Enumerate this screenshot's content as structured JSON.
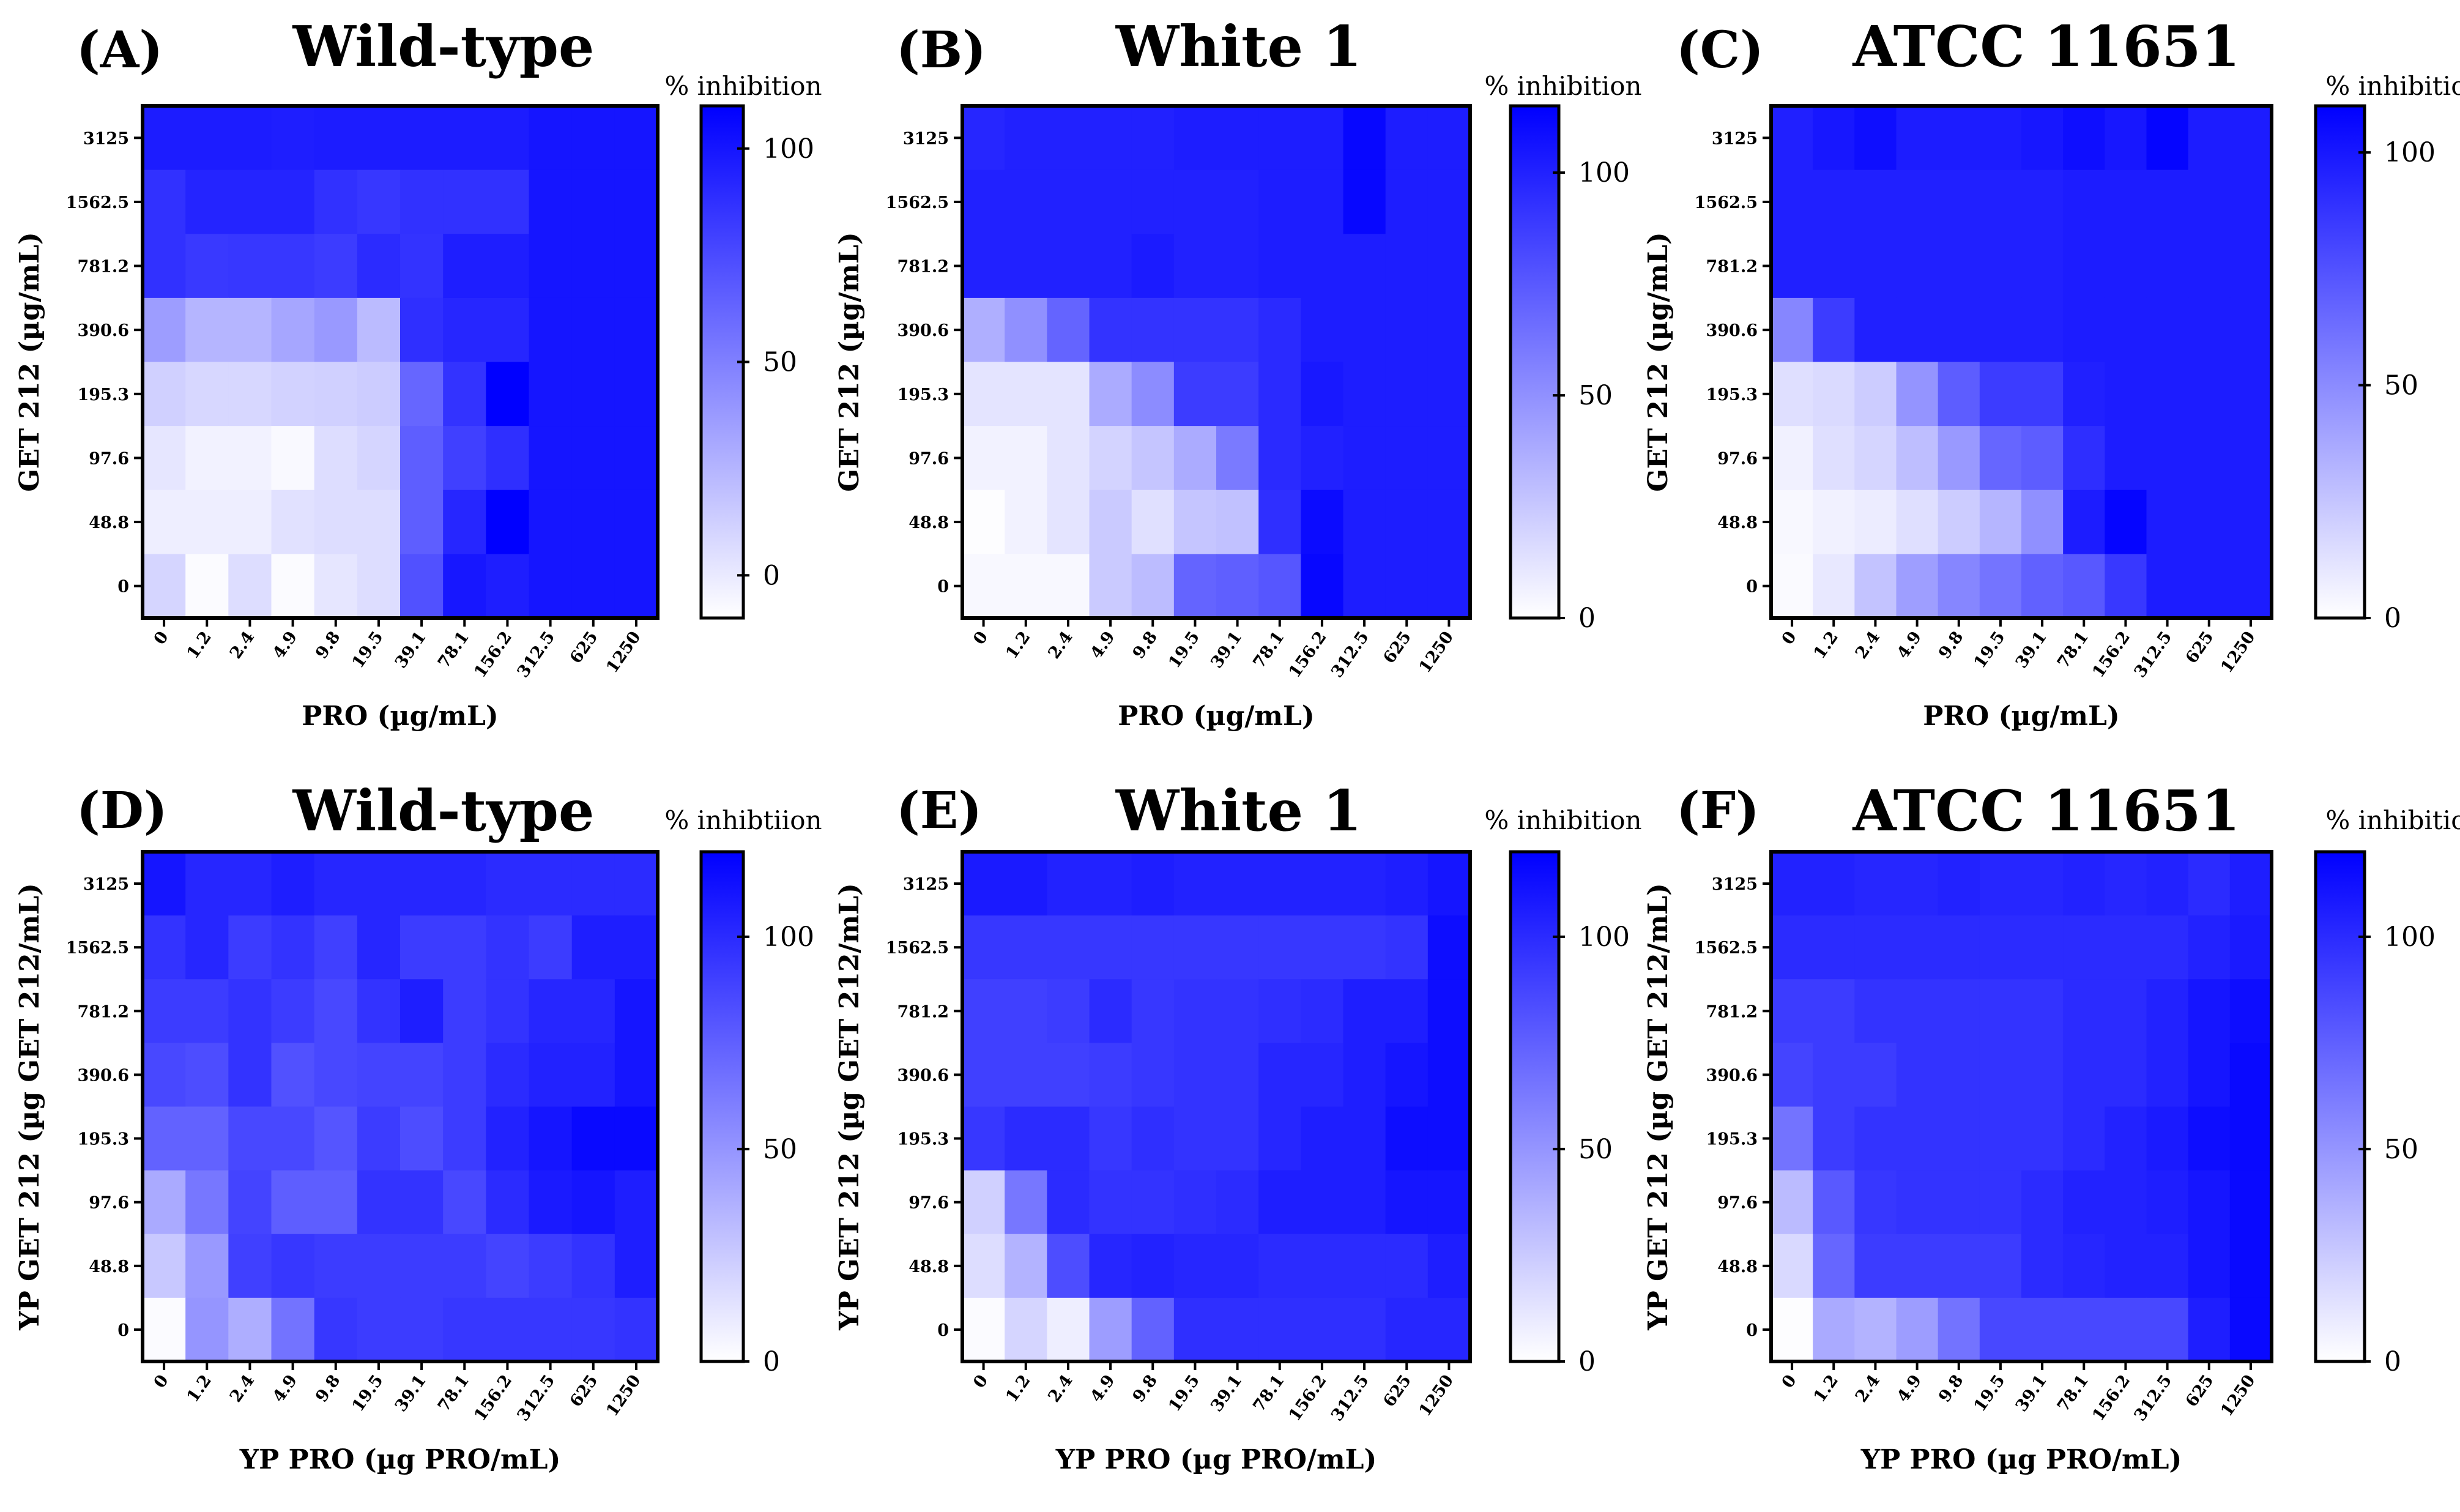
{
  "colors": {
    "low": "#ffffff",
    "high": "#0000ff",
    "frame": "#000000"
  },
  "chart_data": [
    {
      "type": "heatmap",
      "panel": "(A)",
      "title": "Wild-type",
      "xlabel": "PRO (µg/mL)",
      "ylabel": "GET 212 (µg/mL)",
      "colorbar_label": "% inhibition",
      "colorbar_ticks": [
        "0",
        "50",
        "100"
      ],
      "clim": [
        -10,
        110
      ],
      "x": [
        "0",
        "1.2",
        "2.4",
        "4.9",
        "9.8",
        "19.5",
        "39.1",
        "78.1",
        "156.2",
        "312.5",
        "625",
        "1250"
      ],
      "y": [
        "3125",
        "1562.5",
        "781.2",
        "390.6",
        "195.3",
        "97.6",
        "48.8",
        "0"
      ],
      "values": [
        [
          97,
          97,
          97,
          96,
          97,
          97,
          97,
          97,
          97,
          100,
          100,
          100
        ],
        [
          87,
          93,
          93,
          93,
          87,
          84,
          87,
          87,
          87,
          100,
          100,
          100
        ],
        [
          87,
          83,
          84,
          84,
          82,
          90,
          86,
          96,
          96,
          100,
          100,
          100
        ],
        [
          36,
          25,
          25,
          32,
          38,
          22,
          88,
          92,
          92,
          100,
          100,
          100
        ],
        [
          12,
          9,
          9,
          11,
          12,
          14,
          62,
          86,
          110,
          100,
          100,
          100
        ],
        [
          2,
          -4,
          -4,
          -7,
          6,
          10,
          66,
          80,
          88,
          100,
          100,
          100
        ],
        [
          -2,
          -2,
          -2,
          4,
          6,
          6,
          66,
          92,
          112,
          100,
          100,
          100
        ],
        [
          10,
          -8,
          6,
          -8,
          2,
          6,
          72,
          99,
          96,
          100,
          100,
          100
        ]
      ]
    },
    {
      "type": "heatmap",
      "panel": "(B)",
      "title": "White 1",
      "xlabel": "PRO (µg/mL)",
      "ylabel": "GET 212 (µg/mL)",
      "colorbar_label": "% inhibition",
      "colorbar_ticks": [
        "0",
        "50",
        "100"
      ],
      "clim": [
        0,
        115
      ],
      "x": [
        "0",
        "1.2",
        "2.4",
        "4.9",
        "9.8",
        "19.5",
        "39.1",
        "78.1",
        "156.2",
        "312.5",
        "625",
        "1250"
      ],
      "y": [
        "3125",
        "1562.5",
        "781.2",
        "390.6",
        "195.3",
        "97.6",
        "48.8",
        "0"
      ],
      "values": [
        [
          98,
          100,
          100,
          100,
          100,
          102,
          102,
          102,
          102,
          112,
          102,
          102
        ],
        [
          100,
          100,
          100,
          100,
          100,
          100,
          100,
          102,
          102,
          112,
          102,
          102
        ],
        [
          100,
          100,
          100,
          100,
          103,
          100,
          100,
          102,
          102,
          102,
          102,
          102
        ],
        [
          36,
          50,
          70,
          92,
          92,
          92,
          92,
          96,
          102,
          102,
          102,
          102
        ],
        [
          12,
          12,
          12,
          38,
          52,
          88,
          88,
          96,
          104,
          102,
          102,
          102
        ],
        [
          6,
          6,
          12,
          20,
          26,
          38,
          60,
          96,
          100,
          102,
          102,
          102
        ],
        [
          1,
          6,
          12,
          24,
          14,
          26,
          28,
          94,
          110,
          102,
          102,
          102
        ],
        [
          3,
          3,
          3,
          24,
          30,
          70,
          72,
          76,
          112,
          102,
          102,
          102
        ]
      ]
    },
    {
      "type": "heatmap",
      "panel": "(C)",
      "title": "ATCC 11651",
      "xlabel": "PRO (µg/mL)",
      "ylabel": "GET 212 (µg/mL)",
      "colorbar_label": "% inhibition",
      "colorbar_ticks": [
        "0",
        "50",
        "100"
      ],
      "clim": [
        0,
        110
      ],
      "x": [
        "0",
        "1.2",
        "2.4",
        "4.9",
        "9.8",
        "19.5",
        "39.1",
        "78.1",
        "156.2",
        "312.5",
        "625",
        "1250"
      ],
      "y": [
        "3125",
        "1562.5",
        "781.2",
        "390.6",
        "195.3",
        "97.6",
        "48.8",
        "0"
      ],
      "values": [
        [
          96,
          100,
          104,
          98,
          98,
          98,
          100,
          104,
          100,
          108,
          98,
          98
        ],
        [
          96,
          96,
          96,
          96,
          96,
          96,
          96,
          98,
          98,
          98,
          98,
          98
        ],
        [
          96,
          96,
          96,
          96,
          96,
          96,
          96,
          98,
          98,
          98,
          98,
          98
        ],
        [
          52,
          84,
          96,
          96,
          96,
          96,
          96,
          98,
          98,
          98,
          98,
          98
        ],
        [
          14,
          16,
          22,
          46,
          70,
          84,
          84,
          96,
          98,
          98,
          98,
          98
        ],
        [
          6,
          14,
          18,
          28,
          44,
          66,
          70,
          90,
          98,
          98,
          98,
          98
        ],
        [
          3,
          6,
          8,
          14,
          22,
          32,
          48,
          98,
          108,
          98,
          98,
          98
        ],
        [
          2,
          10,
          26,
          42,
          52,
          60,
          68,
          72,
          86,
          98,
          98,
          98
        ]
      ]
    },
    {
      "type": "heatmap",
      "panel": "(D)",
      "title": "Wild-type",
      "xlabel": "YP PRO (µg PRO/mL)",
      "ylabel": "YP GET 212 (µg GET 212/mL)",
      "colorbar_label": "% inhibtiion",
      "colorbar_ticks": [
        "0",
        "50",
        "100"
      ],
      "clim": [
        0,
        120
      ],
      "x": [
        "0",
        "1.2",
        "2.4",
        "4.9",
        "9.8",
        "19.5",
        "39.1",
        "78.1",
        "156.2",
        "312.5",
        "625",
        "1250"
      ],
      "y": [
        "3125",
        "1562.5",
        "781.2",
        "390.6",
        "195.3",
        "97.6",
        "48.8",
        "0"
      ],
      "values": [
        [
          110,
          102,
          102,
          106,
          102,
          102,
          102,
          102,
          100,
          100,
          100,
          100
        ],
        [
          96,
          102,
          92,
          96,
          90,
          102,
          92,
          92,
          96,
          92,
          106,
          106
        ],
        [
          92,
          92,
          96,
          92,
          86,
          96,
          106,
          92,
          96,
          102,
          102,
          110
        ],
        [
          86,
          84,
          96,
          82,
          86,
          88,
          88,
          92,
          100,
          104,
          104,
          110
        ],
        [
          74,
          74,
          86,
          86,
          80,
          92,
          84,
          92,
          104,
          110,
          116,
          116
        ],
        [
          40,
          64,
          88,
          76,
          76,
          96,
          96,
          86,
          100,
          108,
          110,
          106
        ],
        [
          26,
          48,
          90,
          94,
          92,
          92,
          92,
          92,
          88,
          92,
          96,
          106
        ],
        [
          2,
          50,
          38,
          66,
          94,
          92,
          92,
          94,
          94,
          94,
          94,
          96
        ]
      ]
    },
    {
      "type": "heatmap",
      "panel": "(E)",
      "title": "White 1",
      "xlabel": "YP PRO (µg PRO/mL)",
      "ylabel": "YP GET 212 (µg GET 212/mL)",
      "colorbar_label": "% inhibition",
      "colorbar_ticks": [
        "0",
        "50",
        "100"
      ],
      "clim": [
        0,
        120
      ],
      "x": [
        "0",
        "1.2",
        "2.4",
        "4.9",
        "9.8",
        "19.5",
        "39.1",
        "78.1",
        "156.2",
        "312.5",
        "625",
        "1250"
      ],
      "y": [
        "3125",
        "1562.5",
        "781.2",
        "390.6",
        "195.3",
        "97.6",
        "48.8",
        "0"
      ],
      "values": [
        [
          108,
          108,
          104,
          104,
          106,
          104,
          104,
          104,
          104,
          104,
          106,
          110
        ],
        [
          94,
          94,
          94,
          94,
          94,
          94,
          94,
          94,
          94,
          94,
          96,
          114
        ],
        [
          90,
          90,
          92,
          100,
          94,
          96,
          96,
          98,
          100,
          106,
          106,
          114
        ],
        [
          90,
          90,
          90,
          92,
          94,
          96,
          96,
          102,
          102,
          106,
          110,
          114
        ],
        [
          94,
          100,
          100,
          94,
          98,
          96,
          96,
          102,
          106,
          106,
          114,
          114
        ],
        [
          22,
          64,
          100,
          96,
          96,
          98,
          100,
          106,
          106,
          106,
          110,
          110
        ],
        [
          16,
          36,
          84,
          102,
          104,
          102,
          102,
          100,
          100,
          100,
          100,
          106
        ],
        [
          2,
          20,
          8,
          46,
          74,
          98,
          98,
          98,
          98,
          98,
          102,
          102
        ]
      ]
    },
    {
      "type": "heatmap",
      "panel": "(F)",
      "title": "ATCC 11651",
      "xlabel": "YP PRO (µg PRO/mL)",
      "ylabel": "YP GET 212 (µg GET 212/mL)",
      "colorbar_label": "% inhibition",
      "colorbar_ticks": [
        "0",
        "50",
        "100"
      ],
      "clim": [
        0,
        120
      ],
      "x": [
        "0",
        "1.2",
        "2.4",
        "4.9",
        "9.8",
        "19.5",
        "39.1",
        "78.1",
        "156.2",
        "312.5",
        "625",
        "1250"
      ],
      "y": [
        "3125",
        "1562.5",
        "781.2",
        "390.6",
        "195.3",
        "97.6",
        "48.8",
        "0"
      ],
      "values": [
        [
          104,
          104,
          102,
          102,
          104,
          102,
          102,
          104,
          102,
          104,
          100,
          106
        ],
        [
          100,
          100,
          100,
          100,
          100,
          100,
          100,
          100,
          100,
          100,
          104,
          108
        ],
        [
          92,
          92,
          96,
          96,
          96,
          96,
          96,
          100,
          100,
          104,
          110,
          114
        ],
        [
          88,
          92,
          92,
          96,
          96,
          96,
          96,
          100,
          100,
          104,
          110,
          116
        ],
        [
          66,
          92,
          96,
          96,
          96,
          96,
          96,
          100,
          104,
          108,
          114,
          116
        ],
        [
          32,
          78,
          94,
          96,
          96,
          96,
          100,
          104,
          104,
          106,
          110,
          116
        ],
        [
          18,
          72,
          92,
          92,
          92,
          92,
          100,
          102,
          104,
          104,
          110,
          116
        ],
        [
          1,
          40,
          36,
          46,
          66,
          86,
          86,
          86,
          86,
          86,
          106,
          116
        ]
      ]
    }
  ]
}
